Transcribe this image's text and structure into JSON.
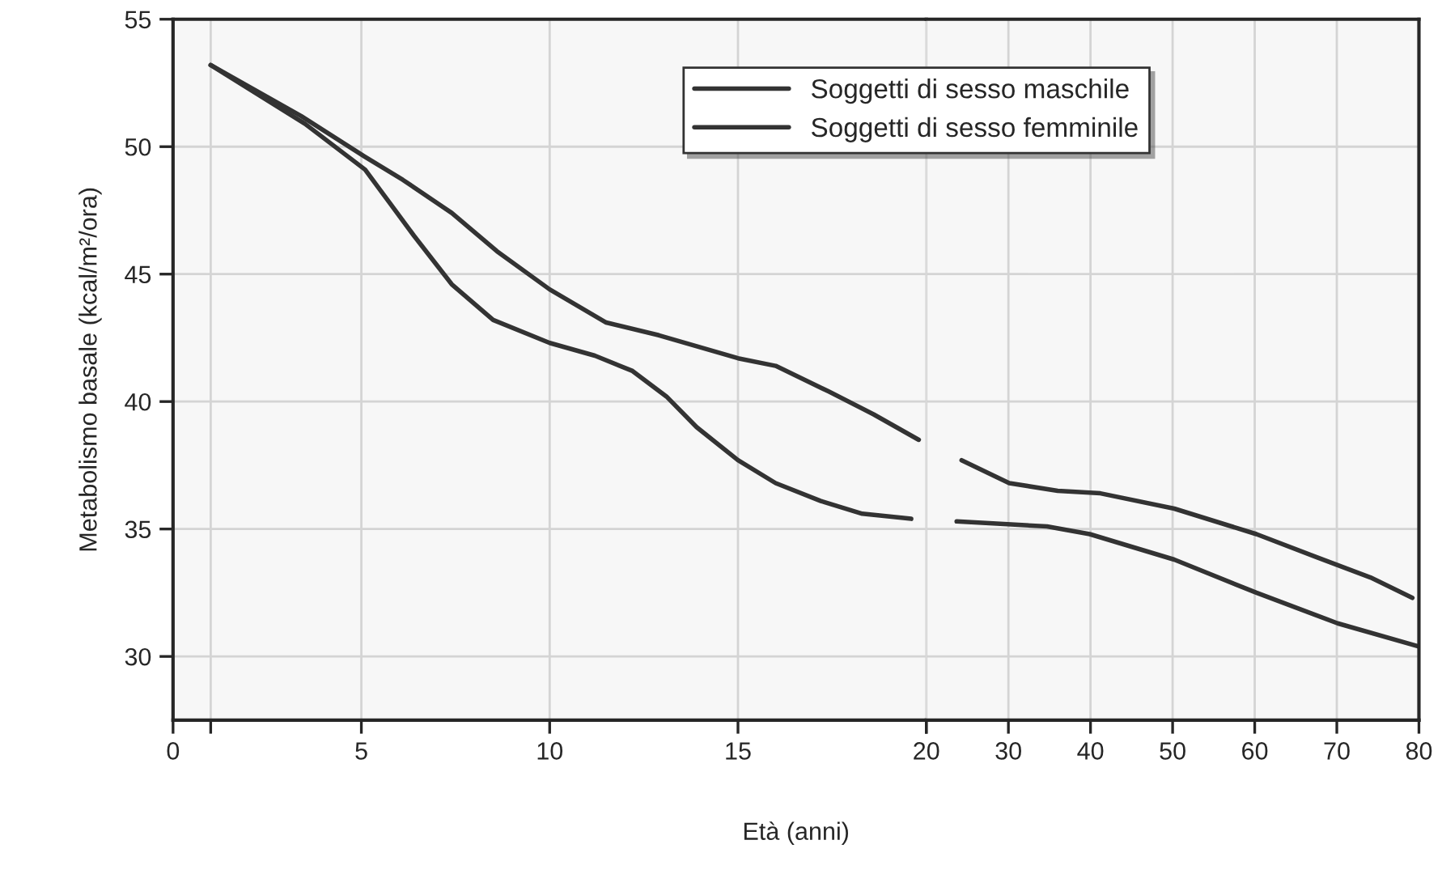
{
  "chart_data": [
    {
      "type": "line",
      "ylabel": "Metabolismo basale (kcal/m²/ora)",
      "xlabel": "Età (anni)",
      "series": [
        {
          "color": "#333333",
          "x": [
            1,
            3.4,
            5.1,
            6.1,
            7.4,
            8.6,
            10,
            11.5,
            12.9,
            15,
            16,
            17.4,
            18.6,
            19.8
          ],
          "values": [
            53.2,
            51.2,
            49.6,
            48.7,
            47.4,
            45.9,
            44.4,
            43.1,
            42.6,
            41.7,
            41.4,
            40.4,
            39.5,
            38.5
          ]
        },
        {
          "color": "#333333",
          "x": [
            1,
            3.5,
            5.1,
            5.6,
            6.4,
            7.4,
            8.5,
            10,
            11.2,
            12.2,
            13.1,
            13.9,
            15,
            16,
            17.2,
            18.3,
            19.6
          ],
          "values": [
            53.2,
            50.9,
            49.1,
            48.1,
            46.5,
            44.6,
            43.2,
            42.3,
            41.8,
            41.2,
            40.2,
            39,
            37.7,
            36.8,
            36.1,
            35.6,
            35.4
          ]
        }
      ],
      "xlim": [
        0,
        20
      ],
      "xticks": [
        0,
        {
          "value": 1,
          "label": null
        },
        5,
        10,
        15,
        20
      ],
      "ylim": [
        27.5,
        55
      ],
      "yticks": [
        30,
        35,
        40,
        45,
        50,
        55
      ],
      "grid": true,
      "line_style": "solid",
      "marker": "none"
    },
    {
      "type": "line",
      "series": [
        {
          "name": "Soggetti di sesso maschile",
          "color": "#333333",
          "x": [
            24.3,
            30.1,
            36,
            41.2,
            50.2,
            60.2,
            67.5,
            74.1,
            79.2
          ],
          "values": [
            37.7,
            36.8,
            36.5,
            36.4,
            35.8,
            34.8,
            33.9,
            33.1,
            32.3
          ]
        },
        {
          "name": "Soggetti di sesso femminile",
          "color": "#333333",
          "x": [
            23.7,
            34.7,
            39.9,
            50.2,
            60.2,
            70.1,
            79.9
          ],
          "values": [
            35.3,
            35.1,
            34.8,
            33.8,
            32.5,
            31.3,
            30.4
          ]
        }
      ],
      "xlim": [
        20,
        80
      ],
      "xticks": [
        {
          "value": 20,
          "label": null
        },
        30,
        40,
        50,
        60,
        70,
        80
      ],
      "ylim": [
        27.5,
        55
      ],
      "yticks": [
        30,
        35,
        40,
        45,
        50,
        55
      ],
      "tick_labels": "x",
      "grid": true,
      "legend": "top left",
      "line_style": "solid",
      "marker": "none"
    }
  ]
}
